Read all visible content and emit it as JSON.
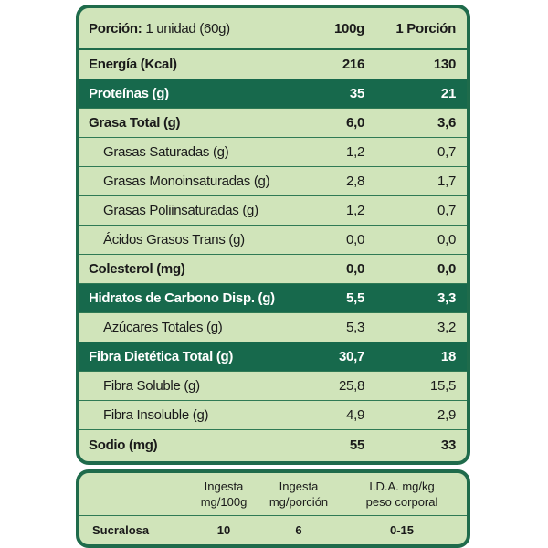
{
  "header": {
    "portion_label": "Porción:",
    "portion_value": "1 unidad (60g)",
    "col1": "100g",
    "col2": "1 Porción"
  },
  "rows": [
    [
      "Energía (Kcal)",
      "216",
      "130"
    ],
    [
      "Proteínas (g)",
      "35",
      "21"
    ],
    [
      "Grasa Total (g)",
      "6,0",
      "3,6"
    ],
    [
      "Grasas Saturadas (g)",
      "1,2",
      "0,7"
    ],
    [
      "Grasas Monoinsaturadas (g)",
      "2,8",
      "1,7"
    ],
    [
      "Grasas Poliinsaturadas (g)",
      "1,2",
      "0,7"
    ],
    [
      "Ácidos Grasos Trans (g)",
      "0,0",
      "0,0"
    ],
    [
      "Colesterol (mg)",
      "0,0",
      "0,0"
    ],
    [
      "Hidratos de Carbono Disp. (g)",
      "5,5",
      "3,3"
    ],
    [
      "Azúcares Totales (g)",
      "5,3",
      "3,2"
    ],
    [
      "Fibra Dietética Total (g)",
      "30,7",
      "18"
    ],
    [
      "Fibra Soluble (g)",
      "25,8",
      "15,5"
    ],
    [
      "Fibra Insoluble (g)",
      "4,9",
      "2,9"
    ],
    [
      "Sodio (mg)",
      "55",
      "33"
    ]
  ],
  "sweetener": {
    "headers": [
      [
        "Ingesta",
        "mg/100g"
      ],
      [
        "Ingesta",
        "mg/porción"
      ],
      [
        "I.D.A. mg/kg",
        "peso corporal"
      ]
    ],
    "row": [
      "Sucralosa",
      "10",
      "6",
      "0-15"
    ]
  }
}
